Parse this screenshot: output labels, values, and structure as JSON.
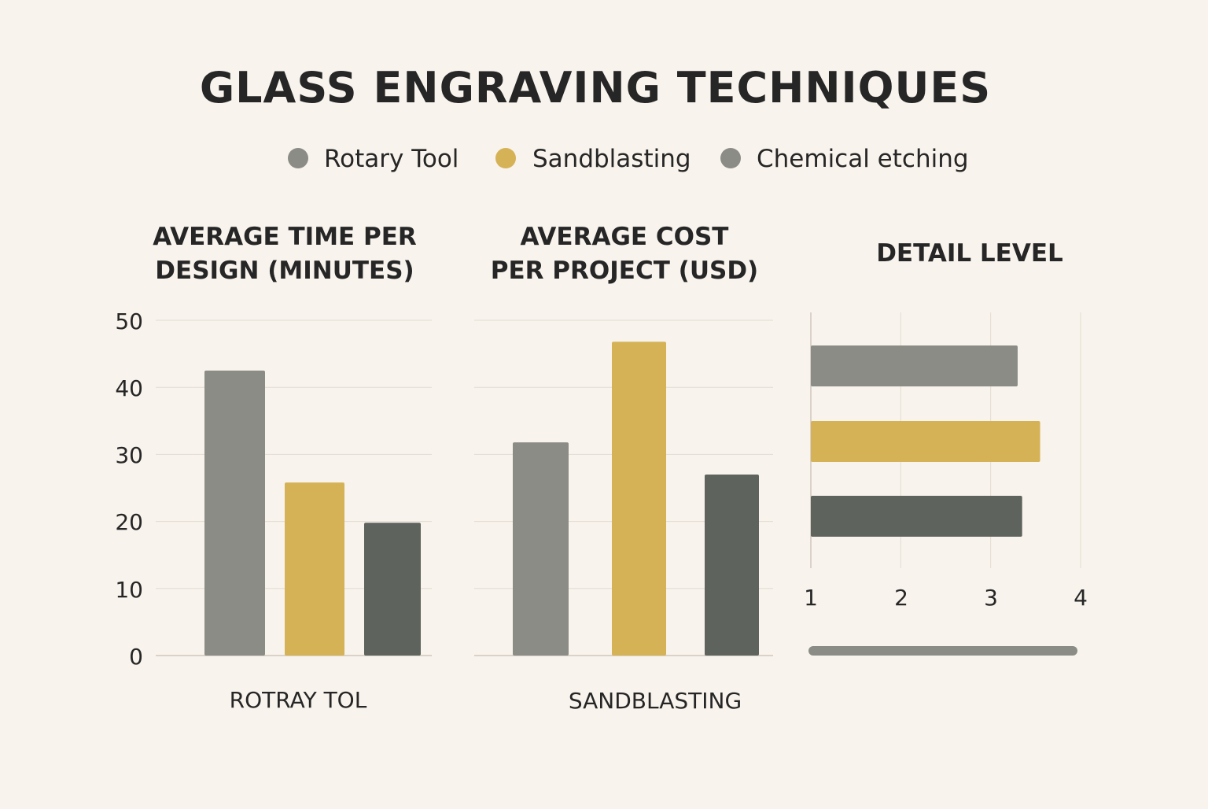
{
  "title": "GLASS ENGRAVING TECHNIQUES",
  "legend": [
    {
      "label": "Rotary Tool",
      "color": "#8b8c86"
    },
    {
      "label": "Sandblasting",
      "color": "#d6b257"
    },
    {
      "label": "Chemical etching",
      "color": "#8b8c86"
    }
  ],
  "colors": {
    "background": "#f8f3ec",
    "rotary": "#8b8c86",
    "sandblasting": "#d6b257",
    "chemical": "#5f635d",
    "grid": "#e2dbd1",
    "axis": "#cfc8bd",
    "text": "#262626"
  },
  "chart_data": [
    {
      "type": "bar",
      "title_lines": [
        "AVERAGE TIME PER",
        "DESIGN (MINUTES)"
      ],
      "xlabel": "ROTRAY TOL",
      "ylim": [
        0,
        50
      ],
      "yticks": [
        "0",
        "10",
        "20",
        "30",
        "40",
        "50"
      ],
      "grid": true,
      "values": [
        42.5,
        25.8,
        19.8
      ]
    },
    {
      "type": "bar",
      "title_lines": [
        "AVERAGE COST",
        "PER PROJECT (USD)"
      ],
      "xlabel": "SANDBLASTING",
      "ylim": [
        0,
        50
      ],
      "grid": true,
      "values": [
        31.8,
        46.8,
        27.0
      ]
    },
    {
      "type": "bar",
      "orientation": "horizontal",
      "title_lines": [
        "DETAIL LEVEL"
      ],
      "xlim": [
        1,
        4
      ],
      "xticks": [
        "1",
        "2",
        "3",
        "4"
      ],
      "grid": true,
      "values": [
        3.3,
        3.55,
        3.35
      ]
    }
  ]
}
